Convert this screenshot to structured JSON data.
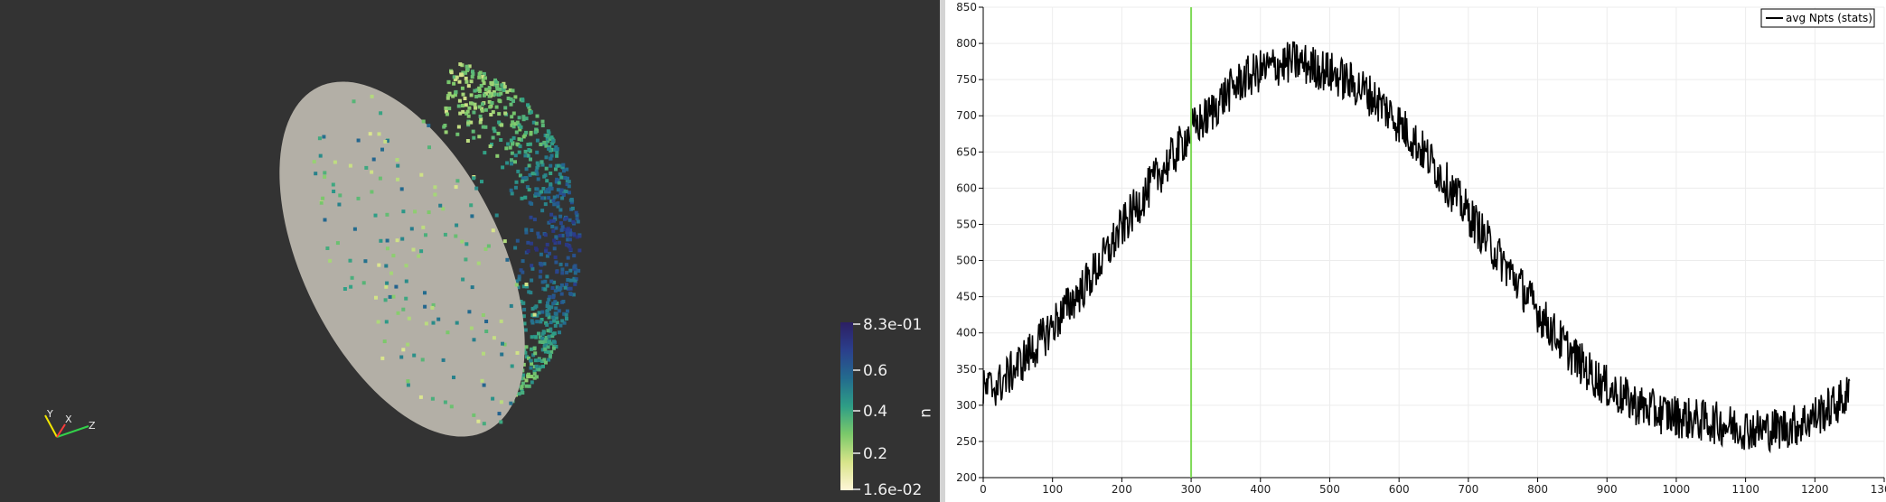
{
  "render_view": {
    "colorbar": {
      "title": "u",
      "max_label": "8.3e-01",
      "min_label": "1.6e-02",
      "tick_labels": [
        "0.6",
        "0.4",
        "0.2"
      ],
      "colors": [
        "#fff6d8",
        "#d8e48a",
        "#7cc96a",
        "#2e9e86",
        "#236b8e",
        "#2b3f8c",
        "#2c1f63"
      ]
    },
    "orientation_axes": {
      "x_label": "X",
      "y_label": "Y",
      "z_label": "Z",
      "colors": {
        "x": "#ff3b3b",
        "y": "#f2e600",
        "z": "#33d14a"
      }
    }
  },
  "line_chart": {
    "legend": {
      "label": "avg Npts (stats)"
    },
    "cursor_x": 300,
    "cursor_color": "#7ed957",
    "line_color": "#000000"
  },
  "chart_data": {
    "type": "line",
    "title": "",
    "xlabel": "",
    "ylabel": "",
    "xlim": [
      0,
      1300
    ],
    "ylim": [
      200,
      850
    ],
    "x_ticks": [
      0,
      100,
      200,
      300,
      400,
      500,
      600,
      700,
      800,
      900,
      1000,
      1100,
      1200,
      1300
    ],
    "y_ticks": [
      200,
      250,
      300,
      350,
      400,
      450,
      500,
      550,
      600,
      650,
      700,
      750,
      800,
      850
    ],
    "grid": true,
    "legend_position": "top-right",
    "series": [
      {
        "name": "avg Npts (stats)",
        "x": [
          0,
          25,
          50,
          75,
          100,
          125,
          150,
          175,
          200,
          225,
          250,
          275,
          300,
          325,
          350,
          375,
          400,
          425,
          450,
          475,
          500,
          525,
          550,
          575,
          600,
          625,
          650,
          675,
          700,
          725,
          750,
          775,
          800,
          825,
          850,
          875,
          900,
          925,
          950,
          975,
          1000,
          1025,
          1050,
          1075,
          1100,
          1125,
          1150,
          1175,
          1200,
          1225,
          1250
        ],
        "y": [
          320,
          330,
          355,
          380,
          410,
          440,
          470,
          505,
          545,
          580,
          615,
          645,
          680,
          700,
          730,
          750,
          762,
          770,
          775,
          768,
          760,
          748,
          735,
          715,
          690,
          662,
          632,
          598,
          565,
          530,
          497,
          465,
          430,
          398,
          370,
          345,
          325,
          310,
          298,
          290,
          285,
          280,
          277,
          272,
          268,
          266,
          268,
          273,
          285,
          298,
          315
        ],
        "noise_amplitude": 30
      }
    ]
  }
}
